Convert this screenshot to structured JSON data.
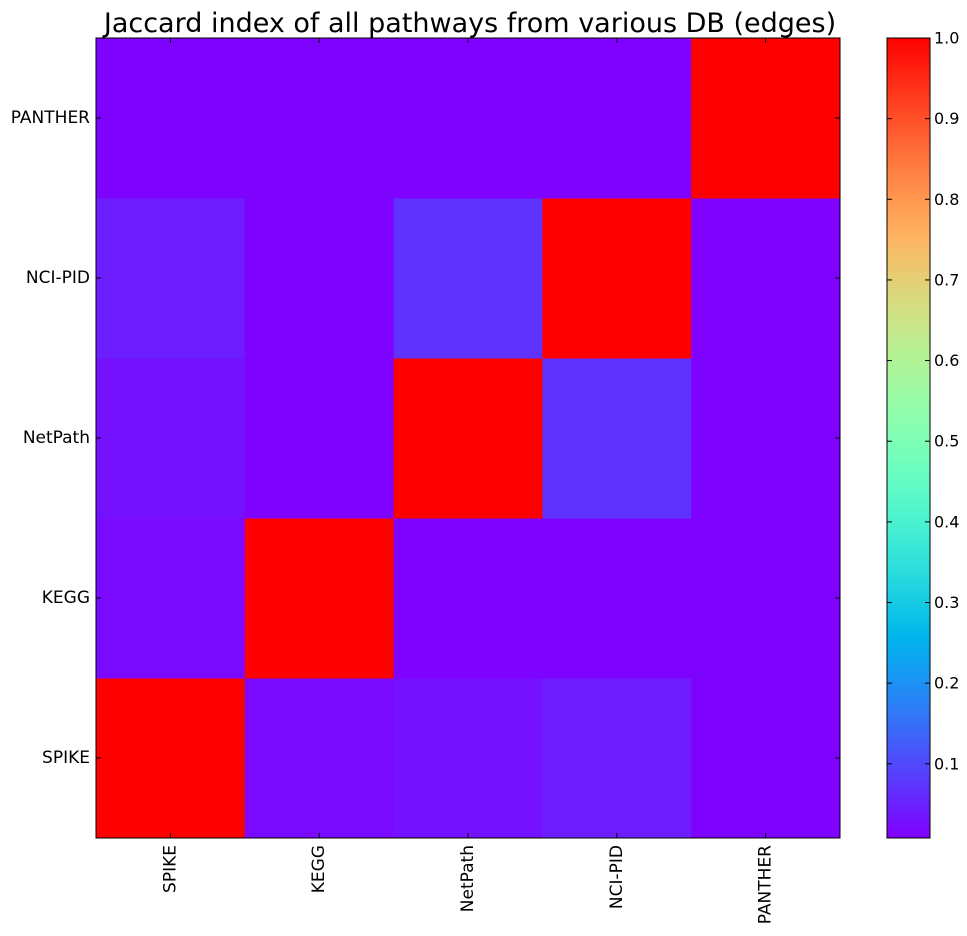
{
  "chart_data": {
    "type": "heatmap",
    "title": "Jaccard index of all pathways from various DB (edges)",
    "x_labels": [
      "SPIKE",
      "KEGG",
      "NetPath",
      "NCI-PID",
      "PANTHER"
    ],
    "y_labels": [
      "SPIKE",
      "KEGG",
      "NetPath",
      "NCI-PID",
      "PANTHER"
    ],
    "matrix": [
      [
        1.0,
        0.02,
        0.03,
        0.045,
        0.012
      ],
      [
        0.02,
        1.0,
        0.01,
        0.011,
        0.012
      ],
      [
        0.03,
        0.01,
        1.0,
        0.07,
        0.009
      ],
      [
        0.045,
        0.011,
        0.07,
        1.0,
        0.009
      ],
      [
        0.012,
        0.012,
        0.009,
        0.009,
        1.0
      ]
    ],
    "colormap": "rainbow",
    "colorbar": {
      "range": [
        0.008,
        1.0
      ],
      "ticks": [
        "0.1",
        "0.2",
        "0.3",
        "0.4",
        "0.5",
        "0.6",
        "0.7",
        "0.8",
        "0.9",
        "1.0"
      ]
    }
  }
}
